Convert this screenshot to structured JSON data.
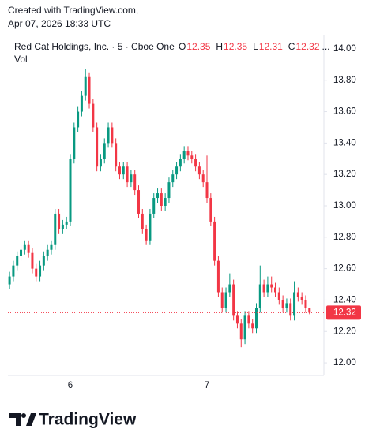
{
  "header": {
    "created": "Created with TradingView.com,",
    "date": "Apr 07, 2026 18:33 UTC"
  },
  "logo_text": "TradingView",
  "chart_data": {
    "type": "candlestick",
    "legend_labels": [
      "O",
      "H",
      "L",
      "C"
    ],
    "legend_overflow": "...",
    "volume_label": "Vol",
    "categories": [
      null,
      null,
      null,
      null,
      null,
      null,
      null,
      null,
      null,
      null,
      null,
      null,
      null,
      null,
      null,
      null,
      "6",
      null,
      null,
      null,
      null,
      null,
      null,
      null,
      null,
      null,
      null,
      null,
      null,
      null,
      null,
      null,
      null,
      null,
      null,
      null,
      null,
      null,
      null,
      null,
      null,
      null,
      null,
      null,
      null,
      null,
      null,
      null,
      null,
      null,
      null,
      null,
      "7",
      null,
      null,
      null,
      null,
      null,
      null,
      null,
      null,
      null,
      null,
      null,
      null,
      null,
      null,
      null,
      null,
      null,
      null,
      null,
      null,
      null,
      null,
      null,
      null,
      null,
      null,
      null
    ],
    "series": [
      {
        "name": "Red Cat Holdings, Inc. · 5 · Cboe One",
        "up_color": "#089981",
        "down_color": "#f23645",
        "open": [
          12.5,
          12.55,
          12.62,
          12.68,
          12.72,
          12.75,
          12.7,
          12.6,
          12.55,
          12.62,
          12.68,
          12.72,
          12.75,
          12.95,
          12.85,
          12.88,
          12.9,
          13.3,
          13.5,
          13.6,
          13.7,
          13.82,
          13.65,
          13.5,
          13.25,
          13.3,
          13.4,
          13.5,
          13.4,
          13.25,
          13.2,
          13.25,
          13.15,
          13.2,
          13.1,
          12.95,
          12.85,
          12.78,
          12.95,
          13.05,
          13.08,
          13.0,
          13.05,
          13.15,
          13.2,
          13.25,
          13.3,
          13.35,
          13.32,
          13.3,
          13.25,
          13.2,
          13.15,
          13.05,
          12.9,
          12.65,
          12.45,
          12.35,
          12.45,
          12.5,
          12.3,
          12.25,
          12.15,
          12.3,
          12.25,
          12.22,
          12.35,
          12.5,
          12.45,
          12.5,
          12.48,
          12.45,
          12.4,
          12.35,
          12.38,
          12.3,
          12.45,
          12.42,
          12.4,
          12.35
        ],
        "high": [
          12.58,
          12.65,
          12.71,
          12.75,
          12.78,
          12.78,
          12.73,
          12.63,
          12.65,
          12.71,
          12.75,
          12.78,
          12.98,
          12.98,
          12.91,
          12.93,
          13.33,
          13.53,
          13.63,
          13.73,
          13.87,
          13.85,
          13.68,
          13.53,
          13.33,
          13.43,
          13.53,
          13.53,
          13.43,
          13.28,
          13.28,
          13.28,
          13.23,
          13.23,
          13.13,
          12.98,
          12.88,
          12.98,
          13.08,
          13.11,
          13.11,
          13.08,
          13.18,
          13.23,
          13.28,
          13.33,
          13.38,
          13.38,
          13.35,
          13.33,
          13.28,
          13.23,
          13.32,
          13.08,
          12.93,
          12.68,
          12.48,
          12.48,
          12.57,
          12.53,
          12.33,
          12.28,
          12.33,
          12.33,
          12.28,
          12.38,
          12.62,
          12.53,
          12.55,
          12.55,
          12.51,
          12.48,
          12.43,
          12.41,
          12.41,
          12.52,
          12.48,
          12.45,
          12.43,
          12.35
        ],
        "low": [
          12.47,
          12.52,
          12.59,
          12.65,
          12.69,
          12.67,
          12.57,
          12.52,
          12.52,
          12.59,
          12.65,
          12.69,
          12.72,
          12.82,
          12.82,
          12.85,
          12.87,
          13.27,
          13.47,
          13.57,
          13.67,
          13.62,
          13.47,
          13.22,
          13.22,
          13.27,
          13.37,
          13.37,
          13.22,
          13.17,
          13.17,
          13.12,
          13.12,
          13.07,
          12.92,
          12.82,
          12.75,
          12.75,
          12.92,
          13.02,
          12.97,
          12.97,
          13.02,
          13.12,
          13.17,
          13.22,
          13.27,
          13.29,
          13.27,
          13.22,
          13.17,
          13.12,
          13.02,
          12.87,
          12.62,
          12.42,
          12.32,
          12.32,
          12.42,
          12.27,
          12.22,
          12.1,
          12.12,
          12.22,
          12.19,
          12.19,
          12.32,
          12.42,
          12.42,
          12.45,
          12.42,
          12.37,
          12.32,
          12.32,
          12.27,
          12.27,
          12.39,
          12.37,
          12.32,
          12.31
        ],
        "close": [
          12.55,
          12.62,
          12.68,
          12.72,
          12.75,
          12.7,
          12.6,
          12.55,
          12.62,
          12.68,
          12.72,
          12.75,
          12.95,
          12.85,
          12.88,
          12.9,
          13.3,
          13.5,
          13.6,
          13.7,
          13.82,
          13.65,
          13.5,
          13.25,
          13.3,
          13.4,
          13.5,
          13.4,
          13.25,
          13.2,
          13.25,
          13.15,
          13.2,
          13.1,
          12.95,
          12.85,
          12.78,
          12.95,
          13.05,
          13.08,
          13.0,
          13.05,
          13.15,
          13.2,
          13.25,
          13.3,
          13.35,
          13.32,
          13.3,
          13.25,
          13.2,
          13.15,
          13.05,
          12.9,
          12.65,
          12.45,
          12.35,
          12.45,
          12.5,
          12.3,
          12.25,
          12.15,
          12.3,
          12.25,
          12.22,
          12.35,
          12.5,
          12.45,
          12.5,
          12.48,
          12.45,
          12.4,
          12.35,
          12.38,
          12.3,
          12.45,
          12.42,
          12.4,
          12.35,
          12.32
        ]
      }
    ],
    "ylim": [
      11.92,
      14.09
    ],
    "yticks": [
      {
        "value": 12,
        "label": "12.00"
      },
      {
        "value": 12.2,
        "label": "12.20"
      },
      {
        "value": 12.4,
        "label": "12.40"
      },
      {
        "value": 12.6,
        "label": "12.60"
      },
      {
        "value": 12.8,
        "label": "12.80"
      },
      {
        "value": 13,
        "label": "13.00"
      },
      {
        "value": 13.2,
        "label": "13.20"
      },
      {
        "value": 13.4,
        "label": "13.40"
      },
      {
        "value": 13.6,
        "label": "13.60"
      },
      {
        "value": 13.8,
        "label": "13.80"
      },
      {
        "value": 14,
        "label": "14.00"
      }
    ],
    "grid": false
  }
}
